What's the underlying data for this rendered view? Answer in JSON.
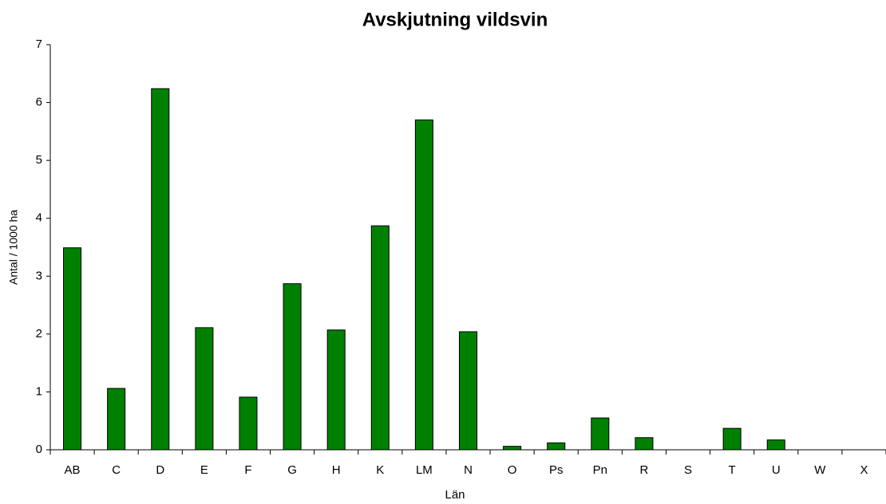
{
  "chart_data": {
    "type": "bar",
    "title": "Avskjutning vildsvin",
    "x_label": "Län",
    "y_label": "Antal / 1000 ha",
    "categories": [
      "AB",
      "C",
      "D",
      "E",
      "F",
      "G",
      "H",
      "K",
      "LM",
      "N",
      "O",
      "Ps",
      "Pn",
      "R",
      "S",
      "T",
      "U",
      "W",
      "X"
    ],
    "values": [
      3.49,
      1.06,
      6.24,
      2.11,
      0.91,
      2.87,
      2.07,
      3.87,
      5.7,
      2.04,
      0.06,
      0.12,
      0.55,
      0.21,
      0,
      0.37,
      0.17,
      0,
      0
    ],
    "color": "#008000",
    "ylim": [
      0,
      7
    ],
    "yticks": [
      0,
      1,
      2,
      3,
      4,
      5,
      6,
      7
    ],
    "grid": false
  }
}
